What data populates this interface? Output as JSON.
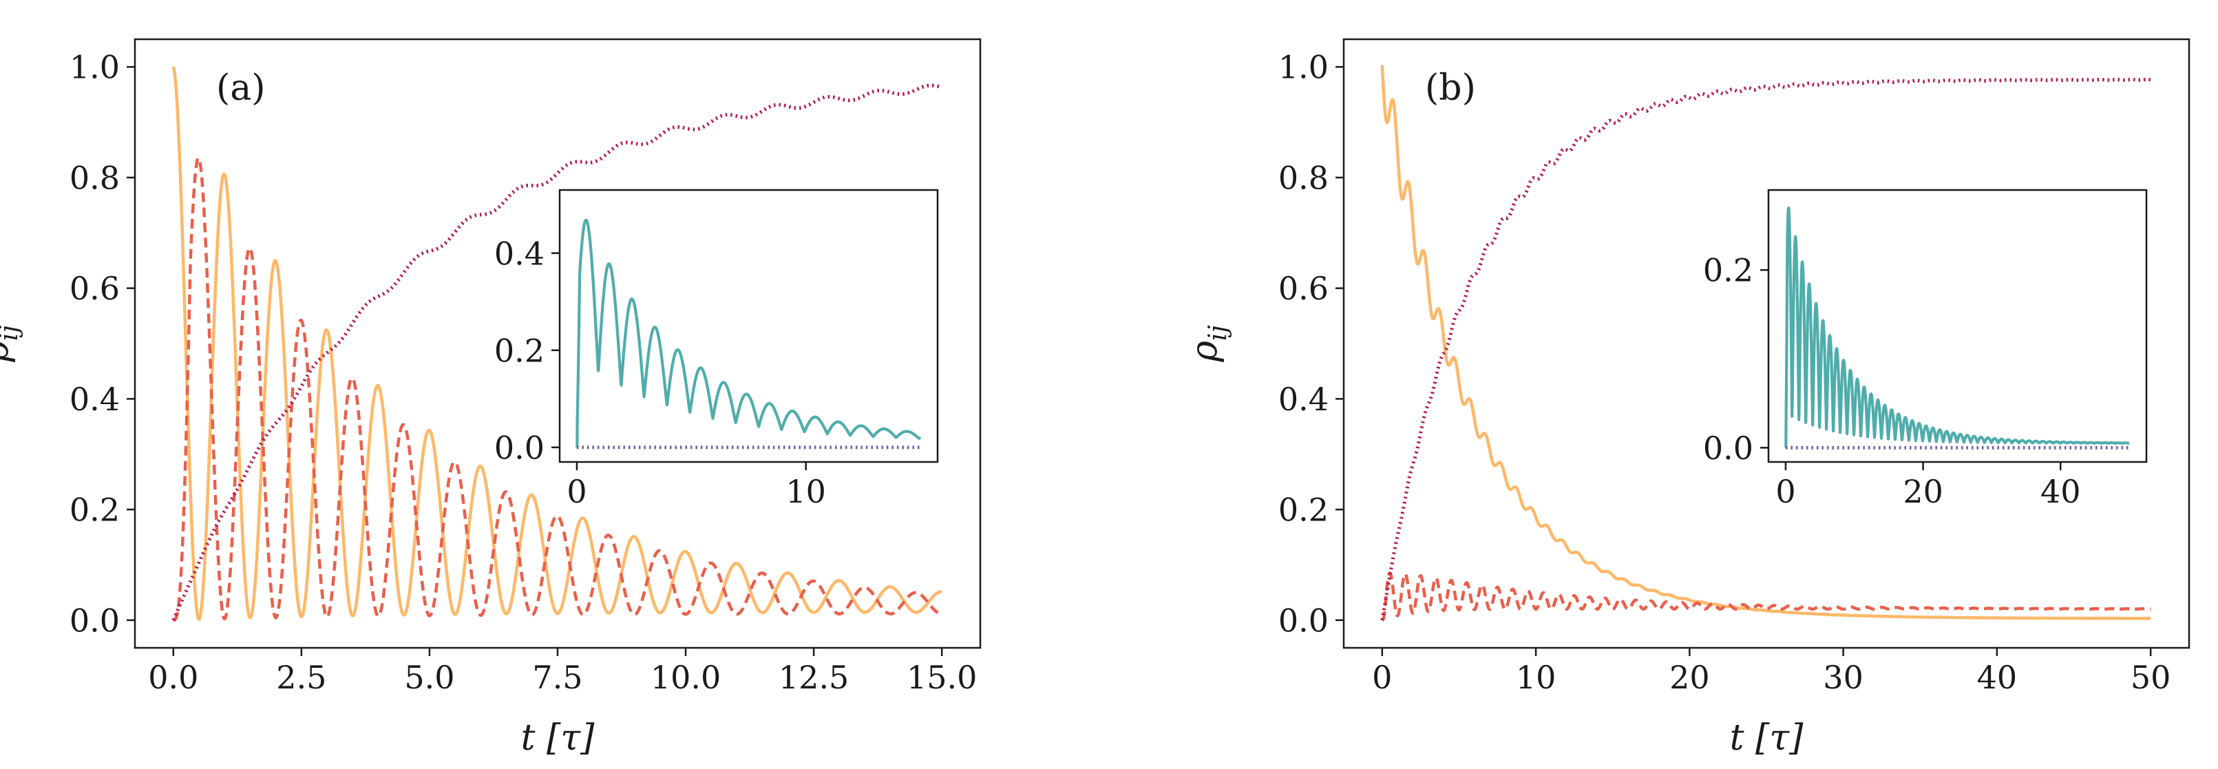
{
  "chart_data": [
    {
      "type": "line",
      "panel_label": "(a)",
      "xlabel": "t [τ]",
      "ylabel": "ρij",
      "xlim": [
        -0.75,
        15.75
      ],
      "ylim": [
        -0.05,
        1.05
      ],
      "xticks": [
        0,
        2.5,
        5,
        7.5,
        10,
        12.5,
        15
      ],
      "xtick_labels": [
        "0.0",
        "2.5",
        "5.0",
        "7.5",
        "10.0",
        "12.5",
        "15.0"
      ],
      "yticks": [
        0,
        0.2,
        0.4,
        0.6,
        0.8,
        1.0
      ],
      "ytick_labels": [
        "0.0",
        "0.2",
        "0.4",
        "0.6",
        "0.8",
        "1.0"
      ],
      "series": [
        {
          "name": "solid-orange",
          "color": "#fdb868",
          "style": "solid",
          "formula": "rabi_excited",
          "params": {
            "tmax": 15,
            "rate": 0.22,
            "omega": 6.2832,
            "eq": 0.0
          }
        },
        {
          "name": "dashed-red",
          "color": "#e8604c",
          "style": "dashed",
          "formula": "rabi_partner",
          "params": {
            "tmax": 15,
            "rate": 0.22,
            "omega": 6.2832,
            "eq": 0.0
          }
        },
        {
          "name": "dotted-crimson",
          "color": "#b5194f",
          "style": "dotted",
          "formula": "ground",
          "params": {
            "tmax": 15,
            "rate": 0.22,
            "omega": 6.2832,
            "sat": 1.0
          }
        }
      ],
      "inset": {
        "xlim": [
          -0.75,
          15.75
        ],
        "ylim": [
          -0.03,
          0.53
        ],
        "xticks": [
          0,
          10
        ],
        "xtick_labels": [
          "0",
          "10"
        ],
        "yticks": [
          0,
          0.2,
          0.4
        ],
        "ytick_labels": [
          "0.0",
          "0.2",
          "0.4"
        ],
        "series": [
          {
            "name": "solid-teal",
            "color": "#4fadab",
            "style": "solid",
            "formula": "coherence",
            "params": {
              "tmax": 15,
              "rate": 0.22,
              "omega": 6.2832,
              "amp": 0.5,
              "floor": 0.012
            }
          },
          {
            "name": "dotted-purple",
            "color": "#6f5aa8",
            "style": "dotted",
            "formula": "zero",
            "params": {
              "tmax": 15
            }
          }
        ]
      }
    },
    {
      "type": "line",
      "panel_label": "(b)",
      "xlabel": "t [τ]",
      "ylabel": "ρij",
      "xlim": [
        -2.5,
        52.5
      ],
      "ylim": [
        -0.05,
        1.05
      ],
      "xticks": [
        0,
        10,
        20,
        30,
        40,
        50
      ],
      "xtick_labels": [
        "0",
        "10",
        "20",
        "30",
        "40",
        "50"
      ],
      "yticks": [
        0,
        0.2,
        0.4,
        0.6,
        0.8,
        1.0
      ],
      "ytick_labels": [
        "0.0",
        "0.2",
        "0.4",
        "0.6",
        "0.8",
        "1.0"
      ],
      "series": [
        {
          "name": "solid-orange",
          "color": "#fdb868",
          "style": "solid",
          "formula": "decay_excited",
          "params": {
            "tmax": 50,
            "rate": 0.17,
            "omega": 6.2832,
            "eq": 0.003
          }
        },
        {
          "name": "dashed-red",
          "color": "#e8604c",
          "style": "dashed",
          "formula": "decay_partner",
          "params": {
            "tmax": 50,
            "rate": 0.17,
            "omega": 6.2832,
            "eq": 0.02
          }
        },
        {
          "name": "dotted-crimson",
          "color": "#b5194f",
          "style": "dotted",
          "formula": "ground",
          "params": {
            "tmax": 50,
            "rate": 0.17,
            "omega": 6.2832,
            "sat": 0.977
          }
        }
      ],
      "inset": {
        "xlim": [
          -2.5,
          52.5
        ],
        "ylim": [
          -0.016,
          0.29
        ],
        "xticks": [
          0,
          20,
          40
        ],
        "xtick_labels": [
          "0",
          "20",
          "40"
        ],
        "yticks": [
          0,
          0.2
        ],
        "ytick_labels": [
          "0.0",
          "0.2"
        ],
        "series": [
          {
            "name": "solid-teal",
            "color": "#4fadab",
            "style": "solid",
            "formula": "coherence_b",
            "params": {
              "tmax": 50,
              "rate": 0.17,
              "omega": 6.2832,
              "amp": 0.28,
              "floor": 0.005
            }
          },
          {
            "name": "dotted-purple",
            "color": "#6f5aa8",
            "style": "dotted",
            "formula": "zero",
            "params": {
              "tmax": 50
            }
          }
        ]
      }
    }
  ]
}
